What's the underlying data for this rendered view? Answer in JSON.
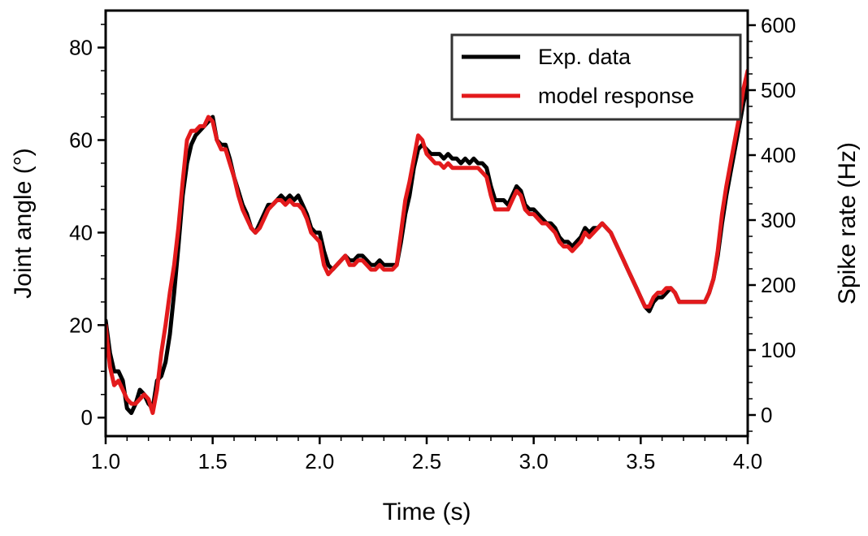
{
  "chart_data": {
    "type": "line",
    "xlabel": "Time (s)",
    "ylabel_left": "Joint angle (°)",
    "ylabel_right": "Spike rate (Hz)",
    "xlim": [
      1.0,
      4.0
    ],
    "ylim_left": [
      -4,
      88
    ],
    "ylim_right": [
      -32.5,
      622.5
    ],
    "x_ticks": [
      1.0,
      1.5,
      2.0,
      2.5,
      3.0,
      3.5,
      4.0
    ],
    "x_tick_labels": [
      "1.0",
      "1.5",
      "2.0",
      "2.5",
      "3.0",
      "3.5",
      "4.0"
    ],
    "y_left_ticks": [
      0,
      20,
      40,
      60,
      80
    ],
    "y_left_tick_labels": [
      "0",
      "20",
      "40",
      "60",
      "80"
    ],
    "y_right_ticks": [
      0,
      100,
      200,
      300,
      400,
      500,
      600
    ],
    "y_right_tick_labels": [
      "0",
      "100",
      "200",
      "300",
      "400",
      "500",
      "600"
    ],
    "grid": false,
    "legend_position": "top-right",
    "series": [
      {
        "name": "Exp. data",
        "axis": "left",
        "color": "#000000",
        "x": [
          1.0,
          1.02,
          1.04,
          1.06,
          1.08,
          1.1,
          1.12,
          1.14,
          1.16,
          1.18,
          1.2,
          1.22,
          1.24,
          1.26,
          1.28,
          1.3,
          1.32,
          1.34,
          1.36,
          1.38,
          1.4,
          1.42,
          1.44,
          1.46,
          1.48,
          1.5,
          1.52,
          1.54,
          1.56,
          1.58,
          1.6,
          1.62,
          1.64,
          1.66,
          1.68,
          1.7,
          1.72,
          1.74,
          1.76,
          1.78,
          1.8,
          1.82,
          1.84,
          1.86,
          1.88,
          1.9,
          1.92,
          1.94,
          1.96,
          1.98,
          2.0,
          2.02,
          2.04,
          2.06,
          2.08,
          2.1,
          2.12,
          2.14,
          2.16,
          2.18,
          2.2,
          2.22,
          2.24,
          2.26,
          2.28,
          2.3,
          2.32,
          2.34,
          2.36,
          2.38,
          2.4,
          2.42,
          2.44,
          2.46,
          2.48,
          2.5,
          2.52,
          2.54,
          2.56,
          2.58,
          2.6,
          2.62,
          2.64,
          2.66,
          2.68,
          2.7,
          2.72,
          2.74,
          2.76,
          2.78,
          2.8,
          2.82,
          2.84,
          2.86,
          2.88,
          2.9,
          2.92,
          2.94,
          2.96,
          2.98,
          3.0,
          3.02,
          3.04,
          3.06,
          3.08,
          3.1,
          3.12,
          3.14,
          3.16,
          3.18,
          3.2,
          3.22,
          3.24,
          3.26,
          3.28,
          3.3,
          3.32,
          3.34,
          3.36,
          3.38,
          3.4,
          3.42,
          3.44,
          3.46,
          3.48,
          3.5,
          3.52,
          3.54,
          3.56,
          3.58,
          3.6,
          3.62,
          3.64,
          3.66,
          3.68,
          3.7,
          3.72,
          3.74,
          3.76,
          3.78,
          3.8,
          3.82,
          3.84,
          3.86,
          3.88,
          3.9,
          3.92,
          3.94,
          3.96,
          3.98,
          4.0
        ],
        "y": [
          21,
          14,
          10,
          10,
          8,
          2,
          1,
          3,
          6,
          5,
          3,
          2,
          8,
          9,
          12,
          18,
          27,
          37,
          48,
          55,
          59,
          61,
          62,
          63,
          64,
          65,
          60,
          59,
          59,
          56,
          52,
          49,
          46,
          44,
          41,
          40,
          42,
          44,
          46,
          46,
          47,
          48,
          47,
          48,
          47,
          48,
          46,
          44,
          41,
          40,
          40,
          36,
          33,
          32,
          33,
          34,
          35,
          34,
          34,
          35,
          35,
          34,
          33,
          33,
          34,
          33,
          33,
          33,
          33,
          38,
          44,
          48,
          54,
          58,
          59,
          58,
          57,
          57,
          57,
          56,
          57,
          56,
          56,
          55,
          56,
          55,
          56,
          55,
          55,
          54,
          50,
          47,
          47,
          47,
          46,
          48,
          50,
          49,
          46,
          45,
          45,
          44,
          43,
          42,
          42,
          41,
          39,
          38,
          38,
          37,
          38,
          39,
          41,
          40,
          41,
          41,
          42,
          41,
          40,
          38,
          36,
          34,
          32,
          30,
          28,
          26,
          24,
          23,
          25,
          26,
          26,
          27,
          28,
          27,
          25,
          25,
          25,
          25,
          25,
          25,
          25,
          27,
          30,
          35,
          42,
          48,
          53,
          58,
          63,
          68,
          72
        ]
      },
      {
        "name": "model response",
        "axis": "left",
        "color": "#e31a1c",
        "x": [
          1.0,
          1.02,
          1.04,
          1.06,
          1.08,
          1.1,
          1.12,
          1.14,
          1.16,
          1.18,
          1.2,
          1.22,
          1.24,
          1.26,
          1.28,
          1.3,
          1.32,
          1.34,
          1.36,
          1.38,
          1.4,
          1.42,
          1.44,
          1.46,
          1.48,
          1.5,
          1.52,
          1.54,
          1.56,
          1.58,
          1.6,
          1.62,
          1.64,
          1.66,
          1.68,
          1.7,
          1.72,
          1.74,
          1.76,
          1.78,
          1.8,
          1.82,
          1.84,
          1.86,
          1.88,
          1.9,
          1.92,
          1.94,
          1.96,
          1.98,
          2.0,
          2.02,
          2.04,
          2.06,
          2.08,
          2.1,
          2.12,
          2.14,
          2.16,
          2.18,
          2.2,
          2.22,
          2.24,
          2.26,
          2.28,
          2.3,
          2.32,
          2.34,
          2.36,
          2.38,
          2.4,
          2.42,
          2.44,
          2.46,
          2.48,
          2.5,
          2.52,
          2.54,
          2.56,
          2.58,
          2.6,
          2.62,
          2.64,
          2.66,
          2.68,
          2.7,
          2.72,
          2.74,
          2.76,
          2.78,
          2.8,
          2.82,
          2.84,
          2.86,
          2.88,
          2.9,
          2.92,
          2.94,
          2.96,
          2.98,
          3.0,
          3.02,
          3.04,
          3.06,
          3.08,
          3.1,
          3.12,
          3.14,
          3.16,
          3.18,
          3.2,
          3.22,
          3.24,
          3.26,
          3.28,
          3.3,
          3.32,
          3.34,
          3.36,
          3.38,
          3.4,
          3.42,
          3.44,
          3.46,
          3.48,
          3.5,
          3.52,
          3.54,
          3.56,
          3.58,
          3.6,
          3.62,
          3.64,
          3.66,
          3.68,
          3.7,
          3.72,
          3.74,
          3.76,
          3.78,
          3.8,
          3.82,
          3.84,
          3.86,
          3.88,
          3.9,
          3.92,
          3.94,
          3.96,
          3.98,
          4.0
        ],
        "y": [
          20,
          11,
          7,
          8,
          6,
          4,
          3,
          3,
          4,
          5,
          4,
          1,
          6,
          14,
          20,
          27,
          33,
          41,
          51,
          60,
          62,
          62,
          63,
          63,
          65,
          64,
          60,
          58,
          58,
          55,
          52,
          48,
          45,
          43,
          41,
          40,
          41,
          43,
          45,
          46,
          47,
          47,
          46,
          47,
          46,
          46,
          45,
          43,
          40,
          39,
          38,
          33,
          31,
          32,
          33,
          34,
          35,
          33,
          33,
          34,
          34,
          33,
          32,
          32,
          33,
          32,
          32,
          32,
          33,
          40,
          47,
          51,
          56,
          61,
          60,
          57,
          56,
          55,
          55,
          54,
          55,
          54,
          54,
          54,
          54,
          54,
          54,
          54,
          53,
          52,
          48,
          45,
          45,
          45,
          45,
          47,
          49,
          48,
          45,
          44,
          44,
          43,
          42,
          42,
          41,
          40,
          38,
          37,
          37,
          36,
          37,
          38,
          40,
          39,
          40,
          41,
          42,
          41,
          40,
          38,
          36,
          34,
          32,
          30,
          28,
          26,
          24,
          24,
          26,
          27,
          27,
          28,
          28,
          27,
          25,
          25,
          25,
          25,
          25,
          25,
          25,
          27,
          30,
          36,
          44,
          50,
          55,
          60,
          65,
          71,
          75
        ]
      }
    ]
  }
}
